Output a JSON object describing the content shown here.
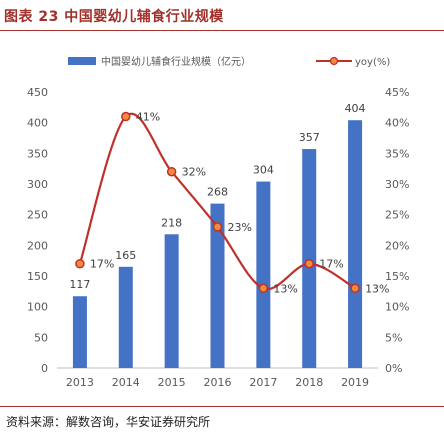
{
  "figure_title": "图表 23 中国婴幼儿辅食行业规模",
  "source": "资料来源：解数咨询，华安证券研究所",
  "chart_data": {
    "type": "bar+line",
    "title": "",
    "categories": [
      "2013",
      "2014",
      "2015",
      "2016",
      "2017",
      "2018",
      "2019"
    ],
    "series": [
      {
        "name": "中国婴幼儿辅食行业规模（亿元）",
        "type": "bar",
        "axis": "left",
        "color": "#4472c4",
        "values": [
          117,
          165,
          218,
          268,
          304,
          357,
          404
        ],
        "labels": [
          "117",
          "165",
          "218",
          "268",
          "304",
          "357",
          "404"
        ]
      },
      {
        "name": "yoy(%)",
        "type": "line",
        "axis": "right",
        "color": "#c0312b",
        "marker_fill": "#f08a3c",
        "values": [
          17,
          41,
          32,
          23,
          13,
          17,
          13
        ],
        "labels": [
          "17%",
          "41%",
          "32%",
          "23%",
          "13%",
          "17%",
          "13%"
        ]
      }
    ],
    "y_left": {
      "range": [
        0,
        450
      ],
      "ticks": [
        "0",
        "50",
        "100",
        "150",
        "200",
        "250",
        "300",
        "350",
        "400",
        "450"
      ]
    },
    "y_right": {
      "range": [
        0,
        45
      ],
      "ticks": [
        "0%",
        "5%",
        "10%",
        "15%",
        "20%",
        "25%",
        "30%",
        "35%",
        "40%",
        "45%"
      ]
    },
    "grid": false,
    "legend_position": "top"
  }
}
